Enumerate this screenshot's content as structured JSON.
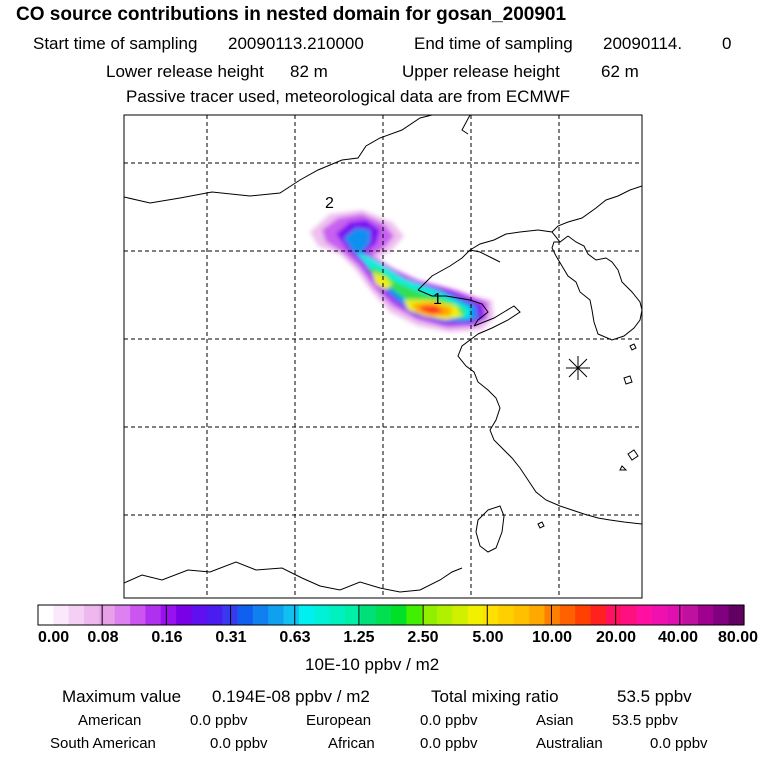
{
  "title": "CO  source contributions in nested domain for gosan_200901",
  "sampling": {
    "start_label": "Start time of sampling",
    "start_value": "20090113.210000",
    "end_label": "End time of sampling",
    "end_value": "20090114.",
    "end_suffix": "0"
  },
  "release": {
    "lower_label": "Lower release height",
    "lower_value": "82 m",
    "upper_label": "Upper release height",
    "upper_value": "62 m"
  },
  "note": "Passive tracer used, meteorological data are from ECMWF",
  "map": {
    "markers": [
      {
        "id": "1",
        "label": "1"
      },
      {
        "id": "2",
        "label": "2"
      }
    ],
    "receptor_symbol": "asterisk"
  },
  "colorbar": {
    "labels": [
      "0.00",
      "0.08",
      "0.16",
      "0.31",
      "0.63",
      "1.25",
      "2.50",
      "5.00",
      "10.00",
      "20.00",
      "40.00",
      "80.00"
    ],
    "units": "10E-10 ppbv / m2",
    "colors": [
      "#ffffff",
      "#fbe8fb",
      "#f4d0f4",
      "#eeb8ee",
      "#e8a0e8",
      "#dd80f0",
      "#cc55f0",
      "#b030f0",
      "#9a10f0",
      "#7a00e8",
      "#6010f0",
      "#4a1cf0",
      "#3838f0",
      "#1060f0",
      "#1080f0",
      "#10a0f0",
      "#10c0f0",
      "#00f0f0",
      "#00f0d8",
      "#00f0c0",
      "#00f0a8",
      "#00e078",
      "#00e050",
      "#00e028",
      "#40f000",
      "#90f000",
      "#b0f000",
      "#d0f000",
      "#f0f000",
      "#ffe000",
      "#ffd000",
      "#ffc000",
      "#ffa800",
      "#ff8000",
      "#ff6000",
      "#ff4000",
      "#ff2020",
      "#ff1060",
      "#ff1080",
      "#ff10a0",
      "#f010b0",
      "#e010b0",
      "#c010a0",
      "#a00090",
      "#800080",
      "#600060"
    ]
  },
  "stats": {
    "max_label": "Maximum value",
    "max_value": "0.194E-08 ppbv / m2",
    "total_label": "Total mixing ratio",
    "total_value": "53.5 ppbv"
  },
  "regions": [
    {
      "name": "American",
      "value": "0.0 ppbv"
    },
    {
      "name": "European",
      "value": "0.0 ppbv"
    },
    {
      "name": "Asian",
      "value": "53.5 ppbv"
    },
    {
      "name": "South American",
      "value": "0.0 ppbv"
    },
    {
      "name": "African",
      "value": "0.0 ppbv"
    },
    {
      "name": "Australian",
      "value": "0.0 ppbv"
    }
  ]
}
